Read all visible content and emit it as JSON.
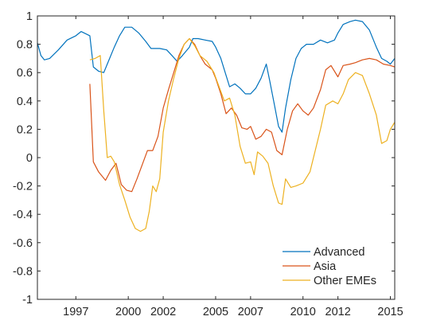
{
  "chart_data": {
    "type": "line",
    "title": "",
    "xlabel": "",
    "ylabel": "",
    "xlim": [
      1994.8,
      2015.25
    ],
    "ylim": [
      -1,
      1
    ],
    "x_ticks": [
      1997,
      2000,
      2002,
      2005,
      2007,
      2010,
      2012,
      2015
    ],
    "y_ticks": [
      -1,
      -0.8,
      -0.6,
      -0.4,
      -0.2,
      0,
      0.2,
      0.4,
      0.6,
      0.8,
      1
    ],
    "x_tick_labels": [
      "1997",
      "2000",
      "2002",
      "2005",
      "2007",
      "2010",
      "2012",
      "2015"
    ],
    "y_tick_labels": [
      "-1",
      "-0.8",
      "-0.6",
      "-0.4",
      "-0.2",
      "0",
      "0.2",
      "0.4",
      "0.6",
      "0.8",
      "1"
    ],
    "grid": false,
    "legend_position": "bottom-right",
    "series": [
      {
        "name": "Advanced",
        "color": "#0072BD",
        "points": [
          [
            1994.8,
            0.81
          ],
          [
            1995.0,
            0.72
          ],
          [
            1995.2,
            0.69
          ],
          [
            1995.5,
            0.7
          ],
          [
            1996.0,
            0.76
          ],
          [
            1996.5,
            0.83
          ],
          [
            1997.0,
            0.86
          ],
          [
            1997.3,
            0.89
          ],
          [
            1997.8,
            0.86
          ],
          [
            1998.0,
            0.64
          ],
          [
            1998.3,
            0.61
          ],
          [
            1998.6,
            0.6
          ],
          [
            1998.8,
            0.66
          ],
          [
            1999.2,
            0.78
          ],
          [
            1999.5,
            0.86
          ],
          [
            1999.8,
            0.92
          ],
          [
            2000.2,
            0.92
          ],
          [
            2000.6,
            0.88
          ],
          [
            2001.0,
            0.82
          ],
          [
            2001.3,
            0.77
          ],
          [
            2001.8,
            0.77
          ],
          [
            2002.2,
            0.76
          ],
          [
            2002.5,
            0.72
          ],
          [
            2002.8,
            0.68
          ],
          [
            2003.1,
            0.72
          ],
          [
            2003.5,
            0.78
          ],
          [
            2003.7,
            0.84
          ],
          [
            2004.0,
            0.84
          ],
          [
            2004.4,
            0.83
          ],
          [
            2004.8,
            0.82
          ],
          [
            2005.0,
            0.78
          ],
          [
            2005.3,
            0.7
          ],
          [
            2005.6,
            0.58
          ],
          [
            2005.8,
            0.5
          ],
          [
            2006.1,
            0.52
          ],
          [
            2006.4,
            0.49
          ],
          [
            2006.7,
            0.45
          ],
          [
            2007.0,
            0.45
          ],
          [
            2007.3,
            0.49
          ],
          [
            2007.6,
            0.56
          ],
          [
            2007.9,
            0.66
          ],
          [
            2008.1,
            0.54
          ],
          [
            2008.4,
            0.35
          ],
          [
            2008.6,
            0.22
          ],
          [
            2008.8,
            0.18
          ],
          [
            2009.0,
            0.35
          ],
          [
            2009.3,
            0.55
          ],
          [
            2009.6,
            0.7
          ],
          [
            2009.9,
            0.77
          ],
          [
            2010.2,
            0.8
          ],
          [
            2010.6,
            0.8
          ],
          [
            2011.0,
            0.83
          ],
          [
            2011.4,
            0.81
          ],
          [
            2011.8,
            0.83
          ],
          [
            2012.0,
            0.88
          ],
          [
            2012.3,
            0.94
          ],
          [
            2012.7,
            0.96
          ],
          [
            2013.0,
            0.97
          ],
          [
            2013.4,
            0.96
          ],
          [
            2013.8,
            0.9
          ],
          [
            2014.2,
            0.78
          ],
          [
            2014.5,
            0.7
          ],
          [
            2014.8,
            0.68
          ],
          [
            2015.0,
            0.66
          ],
          [
            2015.25,
            0.7
          ]
        ]
      },
      {
        "name": "Asia",
        "color": "#D95319",
        "points": [
          [
            1997.8,
            0.52
          ],
          [
            1998.0,
            -0.03
          ],
          [
            1998.3,
            -0.1
          ],
          [
            1998.7,
            -0.16
          ],
          [
            1999.0,
            -0.09
          ],
          [
            1999.3,
            -0.04
          ],
          [
            1999.6,
            -0.19
          ],
          [
            1999.9,
            -0.23
          ],
          [
            2000.2,
            -0.24
          ],
          [
            2000.5,
            -0.15
          ],
          [
            2000.8,
            -0.05
          ],
          [
            2001.1,
            0.05
          ],
          [
            2001.4,
            0.05
          ],
          [
            2001.7,
            0.15
          ],
          [
            2002.0,
            0.35
          ],
          [
            2002.3,
            0.48
          ],
          [
            2002.6,
            0.6
          ],
          [
            2002.9,
            0.72
          ],
          [
            2003.2,
            0.8
          ],
          [
            2003.5,
            0.84
          ],
          [
            2003.8,
            0.8
          ],
          [
            2004.1,
            0.72
          ],
          [
            2004.4,
            0.66
          ],
          [
            2004.8,
            0.62
          ],
          [
            2005.0,
            0.56
          ],
          [
            2005.3,
            0.45
          ],
          [
            2005.6,
            0.31
          ],
          [
            2005.9,
            0.35
          ],
          [
            2006.2,
            0.3
          ],
          [
            2006.5,
            0.21
          ],
          [
            2006.8,
            0.2
          ],
          [
            2007.0,
            0.22
          ],
          [
            2007.3,
            0.13
          ],
          [
            2007.6,
            0.15
          ],
          [
            2007.9,
            0.2
          ],
          [
            2008.2,
            0.18
          ],
          [
            2008.5,
            0.05
          ],
          [
            2008.8,
            0.02
          ],
          [
            2009.1,
            0.2
          ],
          [
            2009.4,
            0.33
          ],
          [
            2009.7,
            0.38
          ],
          [
            2010.0,
            0.33
          ],
          [
            2010.3,
            0.3
          ],
          [
            2010.6,
            0.35
          ],
          [
            2011.0,
            0.48
          ],
          [
            2011.3,
            0.62
          ],
          [
            2011.6,
            0.65
          ],
          [
            2012.0,
            0.57
          ],
          [
            2012.3,
            0.65
          ],
          [
            2012.7,
            0.66
          ],
          [
            2013.0,
            0.67
          ],
          [
            2013.4,
            0.69
          ],
          [
            2013.8,
            0.7
          ],
          [
            2014.2,
            0.69
          ],
          [
            2014.6,
            0.66
          ],
          [
            2015.0,
            0.65
          ],
          [
            2015.25,
            0.64
          ]
        ]
      },
      {
        "name": "Other EMEs",
        "color": "#EDB120",
        "points": [
          [
            1997.8,
            0.69
          ],
          [
            1998.1,
            0.7
          ],
          [
            1998.4,
            0.72
          ],
          [
            1998.6,
            0.33
          ],
          [
            1998.8,
            0.0
          ],
          [
            1999.0,
            0.01
          ],
          [
            1999.2,
            -0.03
          ],
          [
            1999.5,
            -0.19
          ],
          [
            1999.8,
            -0.3
          ],
          [
            2000.1,
            -0.42
          ],
          [
            2000.4,
            -0.5
          ],
          [
            2000.7,
            -0.52
          ],
          [
            2001.0,
            -0.5
          ],
          [
            2001.2,
            -0.38
          ],
          [
            2001.4,
            -0.2
          ],
          [
            2001.6,
            -0.24
          ],
          [
            2001.8,
            -0.15
          ],
          [
            2002.0,
            0.18
          ],
          [
            2002.3,
            0.4
          ],
          [
            2002.6,
            0.56
          ],
          [
            2002.9,
            0.7
          ],
          [
            2003.2,
            0.8
          ],
          [
            2003.5,
            0.84
          ],
          [
            2003.8,
            0.79
          ],
          [
            2004.1,
            0.72
          ],
          [
            2004.5,
            0.68
          ],
          [
            2004.9,
            0.6
          ],
          [
            2005.2,
            0.5
          ],
          [
            2005.5,
            0.4
          ],
          [
            2005.8,
            0.42
          ],
          [
            2006.1,
            0.3
          ],
          [
            2006.4,
            0.08
          ],
          [
            2006.7,
            -0.04
          ],
          [
            2007.0,
            -0.03
          ],
          [
            2007.2,
            -0.12
          ],
          [
            2007.4,
            0.04
          ],
          [
            2007.7,
            0.01
          ],
          [
            2008.0,
            -0.04
          ],
          [
            2008.3,
            -0.2
          ],
          [
            2008.6,
            -0.32
          ],
          [
            2008.8,
            -0.33
          ],
          [
            2009.0,
            -0.15
          ],
          [
            2009.3,
            -0.21
          ],
          [
            2009.6,
            -0.2
          ],
          [
            2010.0,
            -0.18
          ],
          [
            2010.4,
            -0.1
          ],
          [
            2010.7,
            0.05
          ],
          [
            2011.0,
            0.2
          ],
          [
            2011.3,
            0.37
          ],
          [
            2011.7,
            0.4
          ],
          [
            2012.0,
            0.38
          ],
          [
            2012.3,
            0.45
          ],
          [
            2012.6,
            0.55
          ],
          [
            2013.0,
            0.6
          ],
          [
            2013.4,
            0.58
          ],
          [
            2013.8,
            0.45
          ],
          [
            2014.2,
            0.3
          ],
          [
            2014.5,
            0.1
          ],
          [
            2014.8,
            0.12
          ],
          [
            2015.0,
            0.2
          ],
          [
            2015.25,
            0.25
          ]
        ]
      }
    ]
  }
}
